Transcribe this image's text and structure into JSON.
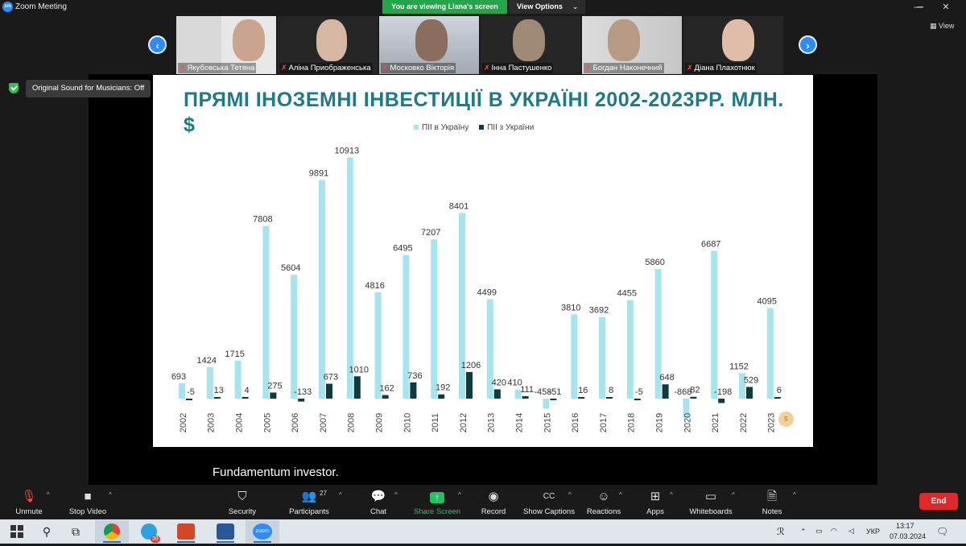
{
  "window": {
    "app_logo": "zm",
    "title": "Zoom Meeting",
    "viewing_banner": "You are viewing Liana's screen",
    "view_options": "View Options",
    "min_icon": "minimize-icon",
    "max_icon": "maximize-icon",
    "close_icon": "close-icon"
  },
  "gallery": {
    "view_label": "View",
    "participants": [
      {
        "name": "Якубовська Тетяна"
      },
      {
        "name": "Аліна Приображенська"
      },
      {
        "name": "Московко Вікторія"
      },
      {
        "name": "Інна Пастушенко"
      },
      {
        "name": "Богдан Наконечний"
      },
      {
        "name": "Діана Плахотнюк"
      }
    ]
  },
  "sound_badge": "Original Sound for Musicians: Off",
  "slide": {
    "title": "ПРЯМІ ІНОЗЕМНІ ІНВЕСТИЦІЇ В УКРАЇНІ 2002-2023РР. МЛН. $",
    "slide_number": "5"
  },
  "chart_data": {
    "type": "bar",
    "title": "ПРЯМІ ІНОЗЕМНІ ІНВЕСТИЦІЇ В УКРАЇНІ 2002-2023РР. МЛН. $",
    "legend_position": "top",
    "grid": false,
    "categories": [
      "2002",
      "2003",
      "2004",
      "2005",
      "2006",
      "2007",
      "2008",
      "2009",
      "2010",
      "2011",
      "2012",
      "2013",
      "2014",
      "2015",
      "2016",
      "2017",
      "2018",
      "2019",
      "2020",
      "2021",
      "2022",
      "2023"
    ],
    "series": [
      {
        "name": "ПІІ в Україну",
        "color": "#a6e4ee",
        "values": [
          693,
          1424,
          1715,
          7808,
          5604,
          9891,
          10913,
          4816,
          6495,
          7207,
          8401,
          4499,
          410,
          -458,
          3810,
          3692,
          4455,
          5860,
          -868,
          6687,
          1152,
          4095
        ]
      },
      {
        "name": "ПІІ з України",
        "color": "#0d3b3f",
        "values": [
          -5,
          13,
          4,
          275,
          -133,
          673,
          1010,
          162,
          736,
          192,
          1206,
          420,
          111,
          -51,
          16,
          8,
          -5,
          648,
          82,
          -198,
          529,
          6
        ]
      }
    ],
    "ylim": [
      -600,
      11000
    ]
  },
  "caption": "Fundamentum investor.",
  "toolbar": {
    "unmute": "Unmute",
    "stop_video": "Stop Video",
    "security": "Security",
    "participants": "Participants",
    "participants_count": "27",
    "chat": "Chat",
    "share_screen": "Share Screen",
    "record": "Record",
    "show_captions": "Show Captions",
    "reactions": "Reactions",
    "apps": "Apps",
    "whiteboards": "Whiteboards",
    "notes": "Notes",
    "end": "End"
  },
  "taskbar": {
    "language": "УКР",
    "time": "13:17",
    "date": "07.03.2024",
    "telegram_badge": "39",
    "zoom_label": "zoom"
  }
}
